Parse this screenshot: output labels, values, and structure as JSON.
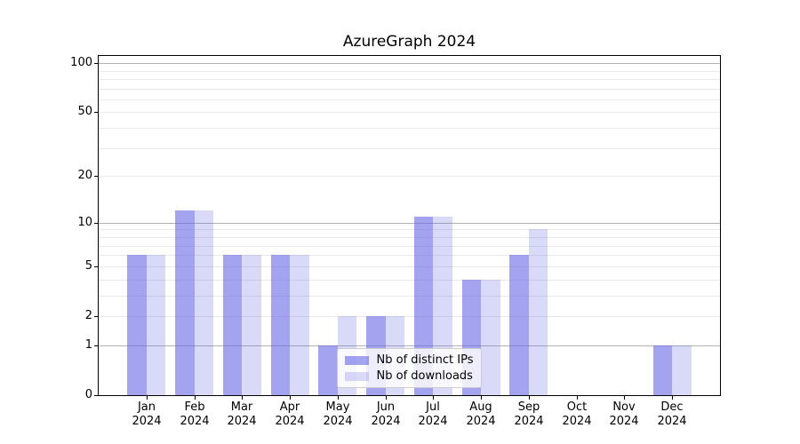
{
  "title": "AzureGraph 2024",
  "chart_data": {
    "type": "bar",
    "title": "AzureGraph 2024",
    "x_categories": [
      "Jan",
      "Feb",
      "Mar",
      "Apr",
      "May",
      "Jun",
      "Jul",
      "Aug",
      "Sep",
      "Oct",
      "Nov",
      "Dec"
    ],
    "x_year": "2024",
    "series": [
      {
        "name": "Nb of distinct IPs",
        "color": "rgba(102,102,229,0.6)",
        "values": [
          6,
          12,
          6,
          6,
          1,
          2,
          11,
          4,
          6,
          0,
          0,
          1
        ]
      },
      {
        "name": "Nb of downloads",
        "color": "rgba(102,102,229,0.25)",
        "values": [
          6,
          12,
          6,
          6,
          2,
          2,
          11,
          4,
          9,
          0,
          0,
          1
        ]
      }
    ],
    "yscale": "log1p",
    "ylim": [
      0,
      110.5
    ],
    "y_ticks": [
      0,
      1,
      2,
      5,
      10,
      20,
      50,
      100
    ],
    "y_tick_labels": [
      "0",
      "1",
      "2",
      "5",
      "10",
      "20",
      "50",
      "100"
    ],
    "major_grid_values": [
      1,
      10,
      100
    ],
    "minor_grid_values": [
      2,
      3,
      4,
      5,
      6,
      7,
      8,
      9,
      20,
      30,
      40,
      50,
      60,
      70,
      80,
      90
    ],
    "grid": true,
    "legend_position": "lower center",
    "legend_labels": [
      "Nb of distinct IPs",
      "Nb of downloads"
    ]
  },
  "colors": {
    "bar_base": "#6666e5",
    "major_grid": "#b2b2b2",
    "minor_grid": "#e9e9e9",
    "spine": "#000000",
    "background": "#ffffff",
    "text": "#000000"
  }
}
